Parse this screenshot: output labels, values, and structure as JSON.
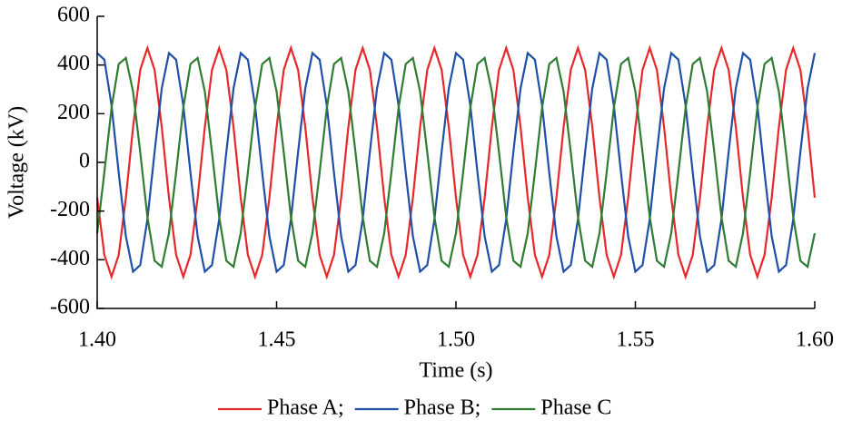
{
  "chart_data": {
    "type": "line",
    "xlabel": "Time (s)",
    "ylabel": "Voltage (kV)",
    "xlim": [
      1.4,
      1.6
    ],
    "ylim": [
      -600,
      600
    ],
    "xticks": [
      {
        "value": 1.4,
        "label": "1.40"
      },
      {
        "value": 1.45,
        "label": "1.45"
      },
      {
        "value": 1.5,
        "label": "1.50"
      },
      {
        "value": 1.55,
        "label": "1.55"
      },
      {
        "value": 1.6,
        "label": "1.60"
      }
    ],
    "yticks": [
      -600,
      -400,
      -200,
      0,
      200,
      400,
      600
    ],
    "legend": "bottom",
    "x": [
      1.4,
      1.402,
      1.404,
      1.406,
      1.408,
      1.41,
      1.412,
      1.414,
      1.416,
      1.418,
      1.42,
      1.422,
      1.424,
      1.426,
      1.428,
      1.43,
      1.432,
      1.434,
      1.436,
      1.438,
      1.44,
      1.442,
      1.444,
      1.446,
      1.448,
      1.45,
      1.452,
      1.454,
      1.456,
      1.458,
      1.46,
      1.462,
      1.464,
      1.466,
      1.468,
      1.47,
      1.472,
      1.474,
      1.476,
      1.478,
      1.48,
      1.482,
      1.484,
      1.486,
      1.488,
      1.49,
      1.492,
      1.494,
      1.496,
      1.498,
      1.5,
      1.502,
      1.504,
      1.506,
      1.508,
      1.51,
      1.512,
      1.514,
      1.516,
      1.518,
      1.52,
      1.522,
      1.524,
      1.526,
      1.528,
      1.53,
      1.532,
      1.534,
      1.536,
      1.538,
      1.54,
      1.542,
      1.544,
      1.546,
      1.548,
      1.55,
      1.552,
      1.554,
      1.556,
      1.558,
      1.56,
      1.562,
      1.564,
      1.566,
      1.568,
      1.57,
      1.572,
      1.574,
      1.576,
      1.578,
      1.58,
      1.582,
      1.584,
      1.586,
      1.588,
      1.59,
      1.592,
      1.594,
      1.596,
      1.598,
      1.6
    ],
    "series": [
      {
        "name": "Phase A;",
        "color": "#e8272a",
        "values": [
          -145,
          -380,
          -470,
          -380,
          -145,
          145,
          380,
          470,
          380,
          145,
          -145,
          -380,
          -470,
          -380,
          -145,
          145,
          380,
          470,
          380,
          145,
          -145,
          -380,
          -470,
          -380,
          -145,
          145,
          380,
          470,
          380,
          145,
          -145,
          -380,
          -470,
          -380,
          -145,
          145,
          380,
          470,
          380,
          145,
          -145,
          -380,
          -470,
          -380,
          -145,
          145,
          380,
          470,
          380,
          145,
          -145,
          -380,
          -470,
          -380,
          -145,
          145,
          380,
          470,
          380,
          145,
          -145,
          -380,
          -470,
          -380,
          -145,
          145,
          380,
          470,
          380,
          145,
          -145,
          -380,
          -470,
          -380,
          -145,
          145,
          380,
          470,
          380,
          145,
          -145,
          -380,
          -470,
          -380,
          -145,
          145,
          380,
          470,
          380,
          145,
          -145,
          -380,
          -470,
          -380,
          -145,
          145,
          380,
          470,
          380,
          145,
          -145
        ]
      },
      {
        "name": "Phase B;",
        "color": "#1f4fa8",
        "values": [
          449,
          422,
          234,
          -43,
          -304,
          -449,
          -422,
          -234,
          43,
          304,
          449,
          422,
          234,
          -43,
          -304,
          -449,
          -422,
          -234,
          43,
          304,
          449,
          422,
          234,
          -43,
          -304,
          -449,
          -422,
          -234,
          43,
          304,
          449,
          422,
          234,
          -43,
          -304,
          -449,
          -422,
          -234,
          43,
          304,
          449,
          422,
          234,
          -43,
          -304,
          -449,
          -422,
          -234,
          43,
          304,
          449,
          422,
          234,
          -43,
          -304,
          -449,
          -422,
          -234,
          43,
          304,
          449,
          422,
          234,
          -43,
          -304,
          -449,
          -422,
          -234,
          43,
          304,
          449,
          422,
          234,
          -43,
          -304,
          -449,
          -422,
          -234,
          43,
          304,
          449,
          422,
          234,
          -43,
          -304,
          -449,
          -422,
          -234,
          43,
          304,
          449,
          422,
          234,
          -43,
          -304,
          -449,
          -422,
          -234,
          43,
          304,
          449
        ]
      },
      {
        "name": "Phase C",
        "color": "#2e7d32",
        "values": [
          -291,
          -41,
          224,
          404,
          429,
          291,
          41,
          -224,
          -404,
          -429,
          -291,
          -41,
          224,
          404,
          429,
          291,
          41,
          -224,
          -404,
          -429,
          -291,
          -41,
          224,
          404,
          429,
          291,
          41,
          -224,
          -404,
          -429,
          -291,
          -41,
          224,
          404,
          429,
          291,
          41,
          -224,
          -404,
          -429,
          -291,
          -41,
          224,
          404,
          429,
          291,
          41,
          -224,
          -404,
          -429,
          -291,
          -41,
          224,
          404,
          429,
          291,
          41,
          -224,
          -404,
          -429,
          -291,
          -41,
          224,
          404,
          429,
          291,
          41,
          -224,
          -404,
          -429,
          -291,
          -41,
          224,
          404,
          429,
          291,
          41,
          -224,
          -404,
          -429,
          -291,
          -41,
          224,
          404,
          429,
          291,
          41,
          -224,
          -404,
          -429,
          -291,
          -41,
          224,
          404,
          429,
          291,
          41,
          -224,
          -404,
          -429,
          -291
        ]
      }
    ]
  }
}
